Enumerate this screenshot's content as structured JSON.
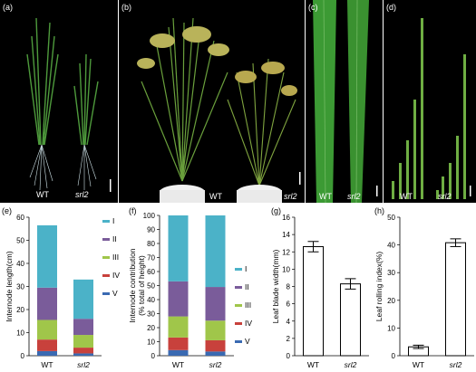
{
  "panels": {
    "a": {
      "label": "(a)",
      "tag_wt": "WT",
      "tag_mut": "srl2"
    },
    "b": {
      "label": "(b)",
      "tag_wt": "WT",
      "tag_mut": "srl2"
    },
    "c": {
      "label": "(c)",
      "tag_wt": "WT",
      "tag_mut": "srl2"
    },
    "d": {
      "label": "(d)",
      "tag_wt": "WT",
      "tag_mut": "srl2"
    },
    "e": {
      "label": "(e)"
    },
    "f": {
      "label": "(f)"
    },
    "g": {
      "label": "(g)"
    },
    "h": {
      "label": "(h)"
    }
  },
  "colors": {
    "I": "#4bb2c8",
    "II": "#7a5c9a",
    "III": "#a0c64a",
    "IV": "#c8413c",
    "V": "#3a6ab2",
    "photo_bg": "#000000",
    "leaf": "#3f9a3a"
  },
  "chart_data": [
    {
      "type": "bar",
      "stacked": true,
      "categories": [
        "WT",
        "srl2"
      ],
      "ylabel": "Internode length(cm)",
      "ylim": [
        0,
        60
      ],
      "yticks": [
        0,
        10,
        20,
        30,
        40,
        50,
        60
      ],
      "series": [
        {
          "name": "V",
          "values": [
            2,
            1
          ]
        },
        {
          "name": "IV",
          "values": [
            5,
            2.5
          ]
        },
        {
          "name": "III",
          "values": [
            8.5,
            5.5
          ]
        },
        {
          "name": "II",
          "values": [
            14,
            7
          ]
        },
        {
          "name": "I",
          "values": [
            27,
            17
          ]
        }
      ],
      "legend": "right"
    },
    {
      "type": "bar",
      "stacked": true,
      "categories": [
        "WT",
        "srl2"
      ],
      "ylabel": "Internode contribution (% total of height)",
      "ylim": [
        0,
        100
      ],
      "yticks": [
        0,
        10,
        20,
        30,
        40,
        50,
        60,
        70,
        80,
        90,
        100
      ],
      "series": [
        {
          "name": "V",
          "values": [
            4,
            3
          ]
        },
        {
          "name": "IV",
          "values": [
            9,
            8
          ]
        },
        {
          "name": "III",
          "values": [
            15,
            14
          ]
        },
        {
          "name": "II",
          "values": [
            25,
            24
          ]
        },
        {
          "name": "I",
          "values": [
            47,
            51
          ]
        }
      ],
      "legend": "right"
    },
    {
      "type": "bar",
      "categories": [
        "WT",
        "srl2"
      ],
      "ylabel": "Leaf blade width(mm)",
      "ylim": [
        0,
        16
      ],
      "yticks": [
        0,
        2,
        4,
        6,
        8,
        10,
        12,
        14,
        16
      ],
      "values": [
        12.6,
        8.3
      ],
      "errors": [
        0.6,
        0.6
      ]
    },
    {
      "type": "bar",
      "categories": [
        "WT",
        "srl2"
      ],
      "ylabel": "Leaf rolling index(%)",
      "ylim": [
        0,
        50
      ],
      "yticks": [
        0,
        10,
        20,
        30,
        40,
        50
      ],
      "values": [
        3.2,
        40.8
      ],
      "errors": [
        0.6,
        1.4
      ]
    }
  ]
}
